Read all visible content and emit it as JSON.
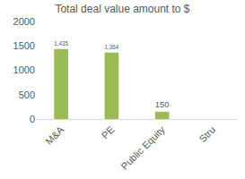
{
  "chart_data": {
    "type": "bar",
    "title": "Total deal value amount to $",
    "categories": [
      "M&A",
      "PE",
      "Public Equity",
      "Stru"
    ],
    "values": [
      1435,
      1364,
      150,
      null
    ],
    "value_labels": [
      "1,435",
      "1,364",
      "150",
      null
    ],
    "color": "#9bbb59",
    "ylim": [
      0,
      2000
    ],
    "yticks": [
      0,
      500,
      1000,
      1500,
      2000
    ],
    "grid": false,
    "data_labels": true
  }
}
